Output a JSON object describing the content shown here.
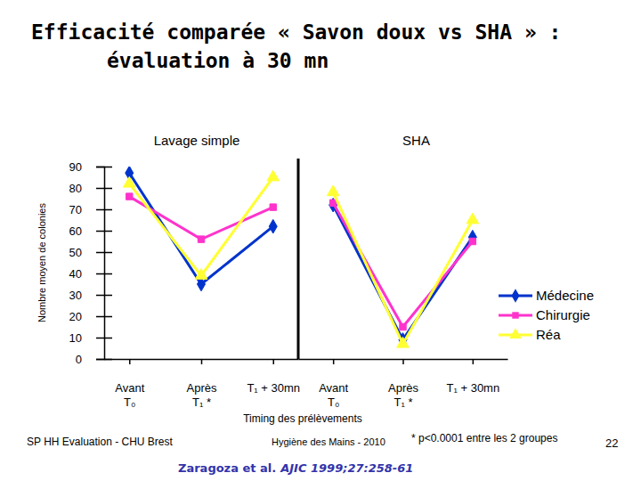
{
  "title": [
    "Efficacité comparée « Savon doux vs SHA » :",
    "évaluation à 30 mn"
  ],
  "chart_data": [
    {
      "type": "line",
      "title": "Lavage simple",
      "ylabel": "Nombre moyen de colonies",
      "xlabel": "Timing des prélèvements",
      "categories": [
        "Avant\nT₀",
        "Après\nT₁ *",
        "T₁ + 30mn"
      ],
      "ylim": [
        0,
        90
      ],
      "yticks": [
        0,
        10,
        20,
        30,
        40,
        50,
        60,
        70,
        80,
        90
      ],
      "series": [
        {
          "color": "#0033cc",
          "marker": "diamond",
          "values": [
            87,
            35,
            62
          ]
        },
        {
          "color": "#ff33cc",
          "marker": "square",
          "values": [
            76,
            56,
            71
          ]
        },
        {
          "color": "#ffff33",
          "marker": "triangle",
          "values": [
            82,
            39,
            85
          ]
        }
      ]
    },
    {
      "type": "line",
      "title": "SHA",
      "categories": [
        "Avant\nT₀",
        "Après\nT₁ *",
        "T₁ + 30mn"
      ],
      "ylim": [
        0,
        90
      ],
      "legend": "right",
      "series": [
        {
          "name": "Médecine",
          "color": "#0033cc",
          "marker": "diamond",
          "values": [
            72,
            9,
            57
          ]
        },
        {
          "name": "Chirurgie",
          "color": "#ff33cc",
          "marker": "square",
          "values": [
            73,
            15,
            55
          ]
        },
        {
          "name": "Réa",
          "color": "#ffff33",
          "marker": "triangle",
          "values": [
            78,
            7,
            65
          ]
        }
      ]
    }
  ],
  "footer": {
    "left": "SP HH Evaluation - CHU Brest",
    "center": "Hygiène des Mains - 2010",
    "note": "* p<0.0001 entre les 2 groupes",
    "page": 22
  },
  "citation": {
    "authors": "Zaragoza et al.",
    "journal": "AJIC 1999;27:258-61"
  }
}
